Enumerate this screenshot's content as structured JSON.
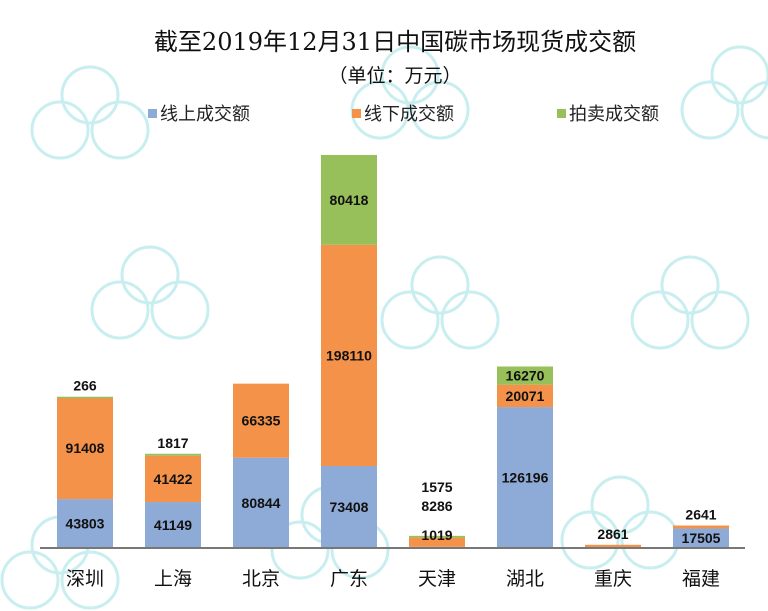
{
  "chart_data": {
    "type": "bar",
    "stacked": true,
    "title": "截至2019年12月31日中国碳市场现货成交额",
    "subtitle": "（单位：万元）",
    "xlabel": "",
    "ylabel": "",
    "categories": [
      "深圳",
      "上海",
      "北京",
      "广东",
      "天津",
      "湖北",
      "重庆",
      "福建"
    ],
    "series": [
      {
        "name": "线上成交额",
        "color": "#8eaad6",
        "values": [
          43803,
          41149,
          80844,
          73408,
          1019,
          126196,
          0,
          17505
        ]
      },
      {
        "name": "线下成交额",
        "color": "#f4924a",
        "values": [
          91408,
          41422,
          66335,
          198110,
          8286,
          20071,
          2861,
          2641
        ]
      },
      {
        "name": "拍卖成交额",
        "color": "#97bf5a",
        "values": [
          266,
          1817,
          0,
          80418,
          1575,
          16270,
          0,
          0
        ]
      }
    ],
    "ylim": [
      0,
      360000
    ],
    "grid": false,
    "legend_position": "top"
  }
}
